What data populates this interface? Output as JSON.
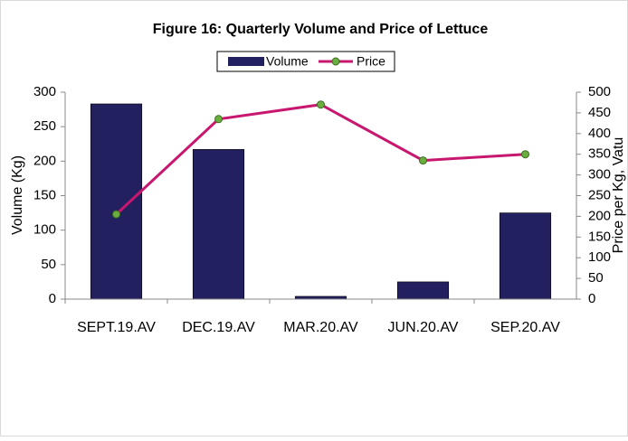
{
  "chart_data": {
    "type": "bar_line",
    "title": "Figure 16: Quarterly Volume and Price of Lettuce",
    "categories": [
      "SEPT.19.AV",
      "DEC.19.AV",
      "MAR.20.AV",
      "JUN.20.AV",
      "SEP.20.AV"
    ],
    "series": [
      {
        "name": "Volume",
        "type": "bar",
        "color": "#23205f",
        "values": [
          283,
          217,
          4,
          25,
          125
        ]
      },
      {
        "name": "Price",
        "type": "line",
        "axis": "y2",
        "color": "#c8176f",
        "marker_color": "#6aae3f",
        "values": [
          205,
          435,
          470,
          335,
          350
        ]
      }
    ],
    "y_label": "Volume  (Kg)",
    "y2_label": "Price per Kg, Vatu",
    "ylim": [
      0,
      300
    ],
    "yticks": [
      0,
      50,
      100,
      150,
      200,
      250,
      300
    ],
    "y2lim": [
      0,
      500
    ],
    "y2ticks": [
      0,
      50,
      100,
      150,
      200,
      250,
      300,
      350,
      400,
      450,
      500
    ],
    "legend": "top"
  }
}
